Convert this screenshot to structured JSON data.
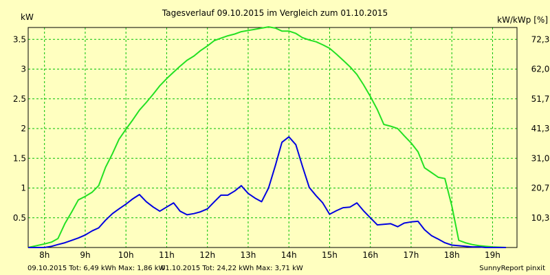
{
  "chart_data": {
    "type": "line",
    "title": "Tagesverlauf 09.10.2015 im Vergleich zum 01.10.2015",
    "y_left_unit": "kW",
    "y_right_unit": "kW/kWp [%]",
    "xlim": [
      7.6,
      19.6
    ],
    "ylim": [
      0,
      3.7
    ],
    "grid": true,
    "x_ticks": [
      {
        "v": 8,
        "label": "8h"
      },
      {
        "v": 9,
        "label": "9h"
      },
      {
        "v": 10,
        "label": "10h"
      },
      {
        "v": 11,
        "label": "11h"
      },
      {
        "v": 12,
        "label": "12h"
      },
      {
        "v": 13,
        "label": "13h"
      },
      {
        "v": 14,
        "label": "14h"
      },
      {
        "v": 15,
        "label": "15h"
      },
      {
        "v": 16,
        "label": "16h"
      },
      {
        "v": 17,
        "label": "17h"
      },
      {
        "v": 18,
        "label": "18h"
      },
      {
        "v": 19,
        "label": "19h"
      }
    ],
    "y_ticks_left": [
      {
        "v": 0.5,
        "label": "0.5"
      },
      {
        "v": 1,
        "label": "1"
      },
      {
        "v": 1.5,
        "label": "1.5"
      },
      {
        "v": 2,
        "label": "2"
      },
      {
        "v": 2.5,
        "label": "2.5"
      },
      {
        "v": 3,
        "label": "3"
      },
      {
        "v": 3.5,
        "label": "3.5"
      }
    ],
    "y_ticks_right": [
      {
        "v": 0.5,
        "label": "10,3"
      },
      {
        "v": 1,
        "label": "20,7"
      },
      {
        "v": 1.5,
        "label": "31,0"
      },
      {
        "v": 2,
        "label": "41,3"
      },
      {
        "v": 2.5,
        "label": "51,7"
      },
      {
        "v": 3,
        "label": "62,0"
      },
      {
        "v": 3.5,
        "label": "72,3"
      }
    ],
    "series": [
      {
        "name": "09.10.2015",
        "color": "#0000e0",
        "footer_text": "09.10.2015 Tot: 6,49 kWh Max: 1,86 kW",
        "x": [
          7.6,
          8.0,
          8.17,
          8.33,
          8.5,
          8.67,
          8.83,
          9.0,
          9.17,
          9.33,
          9.5,
          9.67,
          9.83,
          10.0,
          10.17,
          10.33,
          10.5,
          10.67,
          10.83,
          11.0,
          11.17,
          11.33,
          11.5,
          11.67,
          11.83,
          12.0,
          12.17,
          12.33,
          12.5,
          12.67,
          12.83,
          13.0,
          13.17,
          13.33,
          13.5,
          13.67,
          13.83,
          14.0,
          14.17,
          14.33,
          14.5,
          14.67,
          14.83,
          15.0,
          15.17,
          15.33,
          15.5,
          15.67,
          15.83,
          16.0,
          16.17,
          16.33,
          16.5,
          16.67,
          16.83,
          17.0,
          17.17,
          17.33,
          17.5,
          17.67,
          17.83,
          18.0,
          18.17,
          18.33,
          18.5,
          18.67,
          18.83,
          19.0,
          19.33
        ],
        "values": [
          0.0,
          0.0,
          0.02,
          0.05,
          0.08,
          0.12,
          0.16,
          0.21,
          0.28,
          0.33,
          0.46,
          0.57,
          0.65,
          0.73,
          0.82,
          0.89,
          0.77,
          0.68,
          0.61,
          0.68,
          0.75,
          0.61,
          0.55,
          0.57,
          0.6,
          0.65,
          0.77,
          0.88,
          0.88,
          0.95,
          1.04,
          0.91,
          0.83,
          0.77,
          1.0,
          1.38,
          1.77,
          1.86,
          1.73,
          1.37,
          1.01,
          0.87,
          0.75,
          0.56,
          0.62,
          0.67,
          0.68,
          0.75,
          0.62,
          0.5,
          0.38,
          0.39,
          0.4,
          0.35,
          0.41,
          0.43,
          0.44,
          0.3,
          0.2,
          0.14,
          0.08,
          0.04,
          0.03,
          0.02,
          0.01,
          0.01,
          0.0,
          0.0,
          0.0
        ]
      },
      {
        "name": "01.10.2015",
        "color": "#22e022",
        "footer_text": "01.10.2015 Tot: 24,22 kWh Max: 3,71 kW",
        "x": [
          7.6,
          8.0,
          8.17,
          8.33,
          8.5,
          8.67,
          8.83,
          9.0,
          9.17,
          9.33,
          9.5,
          9.67,
          9.83,
          10.0,
          10.17,
          10.33,
          10.5,
          10.67,
          10.83,
          11.0,
          11.17,
          11.33,
          11.5,
          11.67,
          11.83,
          12.0,
          12.17,
          12.33,
          12.5,
          12.67,
          12.83,
          13.0,
          13.17,
          13.33,
          13.5,
          13.67,
          13.83,
          14.0,
          14.17,
          14.33,
          14.5,
          14.67,
          14.83,
          15.0,
          15.17,
          15.33,
          15.5,
          15.67,
          15.83,
          16.0,
          16.17,
          16.33,
          16.5,
          16.67,
          16.83,
          17.0,
          17.17,
          17.33,
          17.5,
          17.67,
          17.83,
          18.0,
          18.17,
          18.33,
          18.5,
          18.67,
          18.83,
          19.0,
          19.33
        ],
        "values": [
          0.0,
          0.06,
          0.09,
          0.15,
          0.4,
          0.6,
          0.8,
          0.86,
          0.93,
          1.04,
          1.35,
          1.58,
          1.82,
          1.99,
          2.15,
          2.31,
          2.44,
          2.58,
          2.72,
          2.84,
          2.95,
          3.05,
          3.15,
          3.22,
          3.31,
          3.39,
          3.48,
          3.52,
          3.56,
          3.59,
          3.63,
          3.65,
          3.67,
          3.69,
          3.71,
          3.69,
          3.64,
          3.64,
          3.6,
          3.53,
          3.49,
          3.46,
          3.41,
          3.35,
          3.25,
          3.15,
          3.04,
          2.91,
          2.74,
          2.54,
          2.32,
          2.07,
          2.04,
          2.0,
          1.88,
          1.76,
          1.61,
          1.34,
          1.26,
          1.18,
          1.16,
          0.7,
          0.12,
          0.08,
          0.05,
          0.03,
          0.02,
          0.01,
          0.0
        ]
      }
    ],
    "credit": "SunnyReport pinxit"
  }
}
